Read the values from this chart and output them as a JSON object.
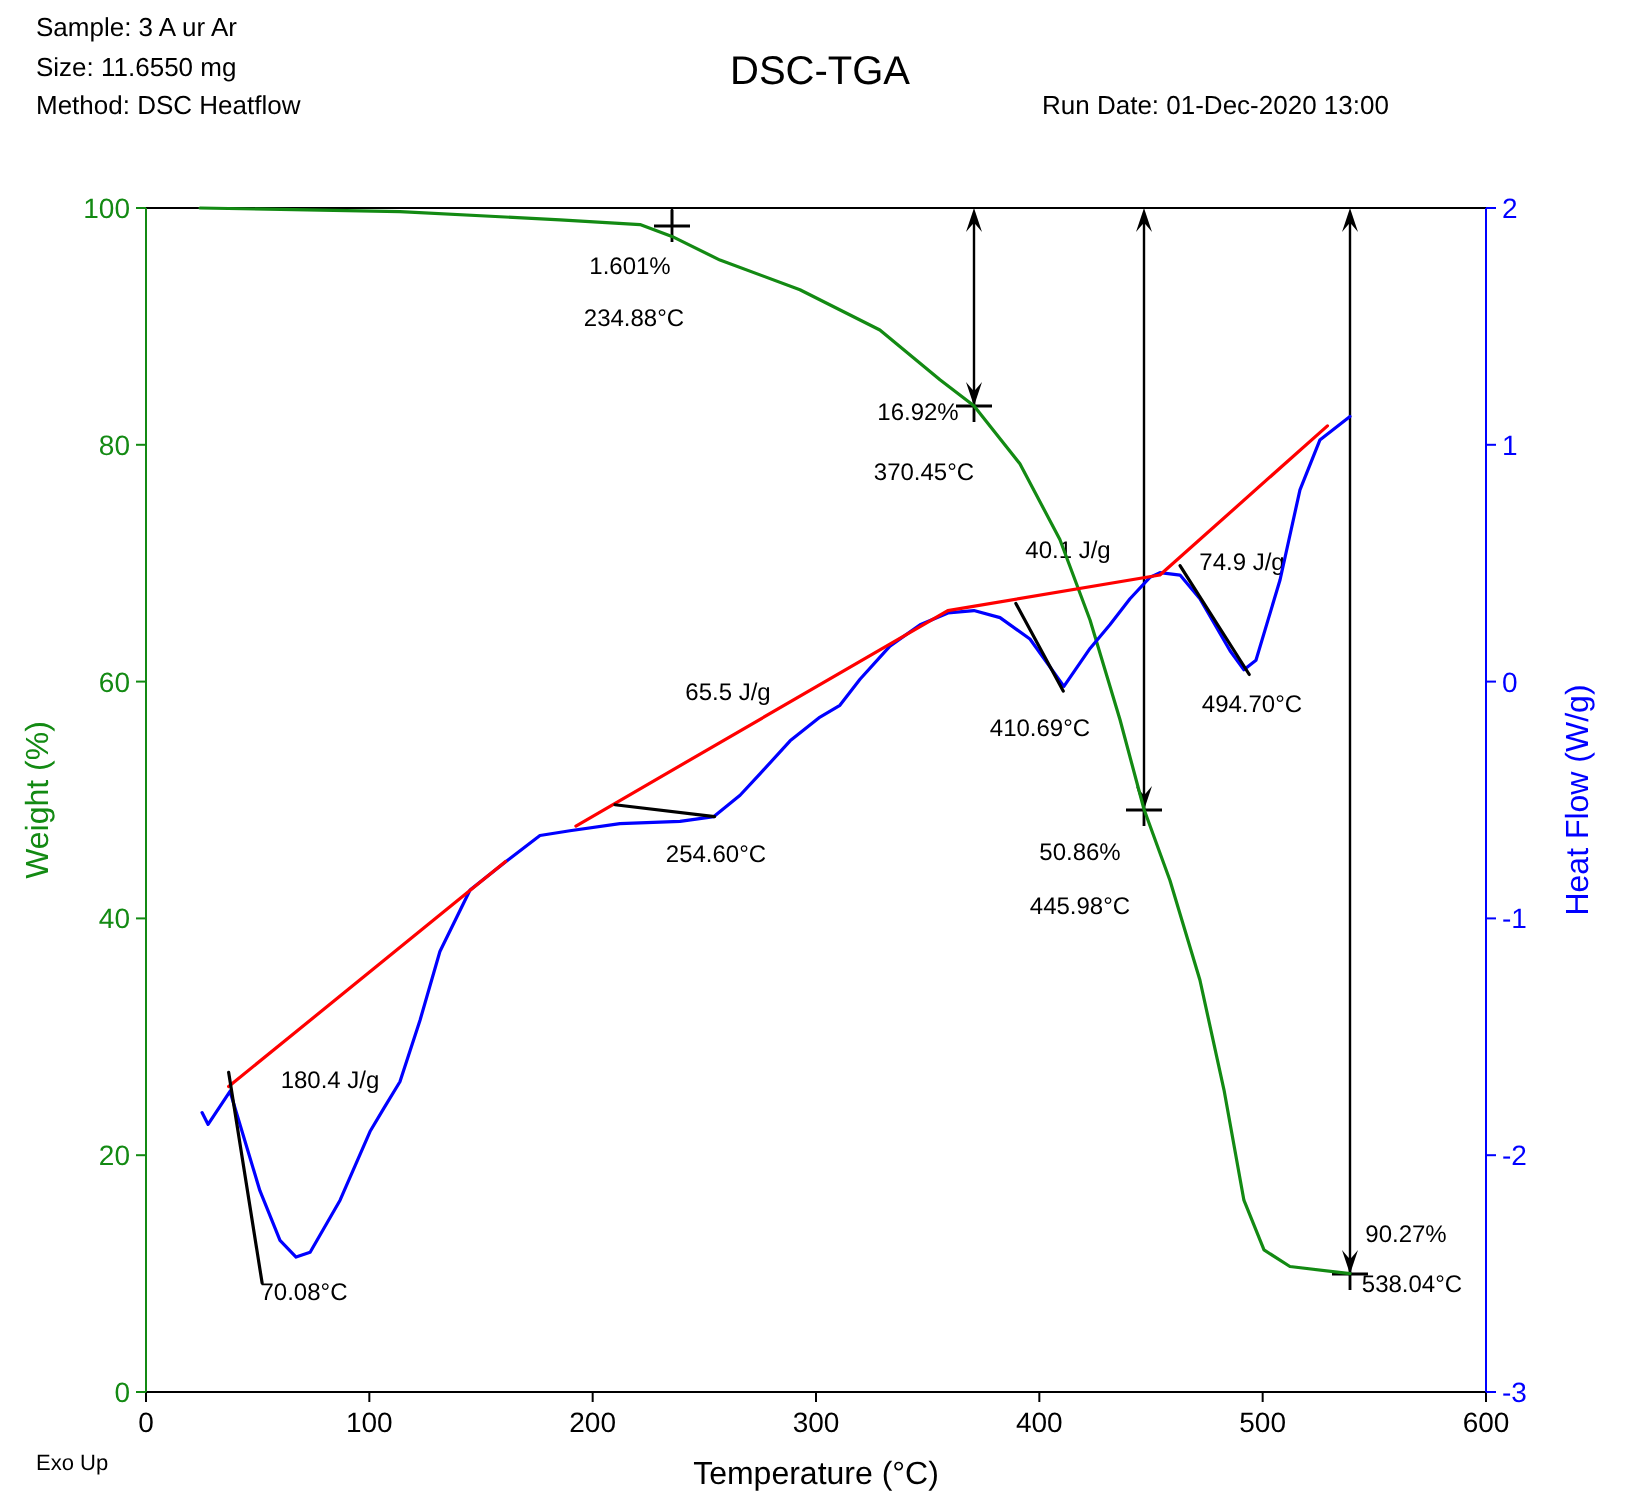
{
  "chart_data": {
    "type": "line",
    "title": "DSC-TGA",
    "xlabel": "Temperature (°C)",
    "ylabel": "Weight (%)",
    "y2label": "Heat Flow (W/g)",
    "xlim": [
      0,
      600
    ],
    "xticks": [
      0,
      100,
      200,
      300,
      400,
      500,
      600
    ],
    "ylim": [
      0,
      100
    ],
    "yticks": [
      0,
      20,
      40,
      60,
      80,
      100
    ],
    "y2lim": [
      -3,
      2
    ],
    "y2ticks": [
      -3,
      -2,
      -1,
      0,
      1,
      2
    ],
    "grid": false,
    "marker": "none",
    "line_style": "solid",
    "series": [
      {
        "color": "#138a13",
        "axis": "y",
        "x": [
          24.2,
          113.7,
          185.4,
          221.2,
          235.5,
          257,
          292.8,
          328.6,
          355.5,
          370.7,
          391.3,
          409.2,
          422.7,
          436.1,
          446.9,
          458.5,
          471.9,
          482.7,
          491.6,
          500.6,
          512.2,
          539.1
        ],
        "values": [
          100,
          99.7,
          99.0,
          98.6,
          97.6,
          95.6,
          93.1,
          89.7,
          85.5,
          83.3,
          78.4,
          72.0,
          65.2,
          56.8,
          49.2,
          43.2,
          34.8,
          25.5,
          16.2,
          12.0,
          10.6,
          10.0
        ]
      },
      {
        "color": "#0000ff",
        "axis": "y2",
        "x": [
          25.1,
          27.8,
          37.6,
          51.0,
          60.0,
          67.2,
          73.5,
          86.9,
          100.3,
          106.6,
          113.7,
          122.7,
          131.6,
          145.1,
          161.2,
          176.4,
          189.8,
          212.2,
          239.1,
          254.3,
          266.0,
          274.9,
          288.4,
          301.8,
          310.7,
          319.7,
          333.1,
          346.6,
          359.1,
          370.7,
          382.4,
          395.8,
          411.0,
          422.7,
          431.6,
          440.6,
          449.5,
          454.0,
          463.0,
          471.9,
          485.4,
          491.6,
          497.0,
          507.8,
          516.7,
          525.6,
          539.1
        ],
        "values": [
          -1.82,
          -1.87,
          -1.73,
          -2.15,
          -2.36,
          -2.43,
          -2.41,
          -2.19,
          -1.9,
          -1.8,
          -1.69,
          -1.43,
          -1.14,
          -0.88,
          -0.76,
          -0.65,
          -0.63,
          -0.6,
          -0.59,
          -0.57,
          -0.48,
          -0.39,
          -0.25,
          -0.15,
          -0.1,
          0.01,
          0.15,
          0.24,
          0.29,
          0.3,
          0.27,
          0.18,
          -0.02,
          0.14,
          0.24,
          0.35,
          0.44,
          0.46,
          0.45,
          0.35,
          0.13,
          0.05,
          0.09,
          0.43,
          0.81,
          1.02,
          1.12
        ]
      },
      {
        "color": "#ff0000",
        "axis": "y2",
        "x": [
          37,
          161
        ],
        "values": [
          -1.71,
          -0.76
        ]
      },
      {
        "color": "#ff0000",
        "axis": "y2",
        "x": [
          192.5,
          359,
          454,
          529
        ],
        "values": [
          -0.61,
          0.3,
          0.45,
          1.08
        ]
      },
      {
        "color": "#000000",
        "axis": "y2",
        "x": [
          37,
          52
        ],
        "values": [
          -1.65,
          -2.54
        ]
      },
      {
        "color": "#000000",
        "axis": "y2",
        "x": [
          210,
          254.6
        ],
        "values": [
          -0.52,
          -0.57
        ]
      },
      {
        "color": "#000000",
        "axis": "y2",
        "x": [
          389.5,
          410.7
        ],
        "values": [
          0.33,
          -0.04
        ]
      },
      {
        "color": "#000000",
        "axis": "y2",
        "x": [
          463,
          494
        ],
        "values": [
          0.49,
          0.03
        ]
      }
    ],
    "annotations": [
      "Sample: 3 A ur Ar",
      "Size:  11.6550 mg",
      "Method: DSC Heatflow",
      "Run Date: 01-Dec-2020 13:00",
      "Exo Up",
      "1.601%",
      "234.88°C",
      "16.92%",
      "370.45°C",
      "40.1 J/g",
      "74.9 J/g",
      "65.5 J/g",
      "410.69°C",
      "494.70°C",
      "254.60°C",
      "50.86%",
      "445.98°C",
      "180.4 J/g",
      "70.08°C",
      "90.27%",
      "538.04°C"
    ]
  }
}
